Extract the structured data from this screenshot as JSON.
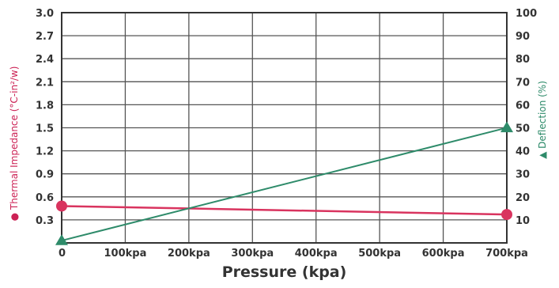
{
  "chart_data": {
    "type": "line",
    "xlabel": "Pressure (kpa)",
    "categories": [
      "0",
      "100kpa",
      "200kpa",
      "300kpa",
      "400kpa",
      "500kpa",
      "600kpa",
      "700kpa"
    ],
    "x_values": [
      0,
      100,
      200,
      300,
      400,
      500,
      600,
      700
    ],
    "xlim": [
      0,
      700
    ],
    "y_left": {
      "label": "● Thermal Impedance (°C-in²/w)",
      "lim": [
        0,
        3.0
      ],
      "ticks": [
        "0.3",
        "0.6",
        "0.9",
        "1.2",
        "1.5",
        "1.8",
        "2.1",
        "2.4",
        "2.7",
        "3.0"
      ]
    },
    "y_right": {
      "label": "▲ Deflection (%)",
      "lim": [
        0,
        100
      ],
      "ticks": [
        "10",
        "20",
        "30",
        "40",
        "50",
        "60",
        "70",
        "80",
        "90",
        "100"
      ]
    },
    "grid": true,
    "series": [
      {
        "axis": "left",
        "color": "#d9345f",
        "marker": "circle",
        "points": [
          [
            0,
            0.48
          ],
          [
            700,
            0.37
          ]
        ]
      },
      {
        "axis": "right",
        "color": "#2e8b6a",
        "marker": "triangle",
        "points": [
          [
            0,
            1
          ],
          [
            700,
            50
          ]
        ]
      }
    ]
  }
}
